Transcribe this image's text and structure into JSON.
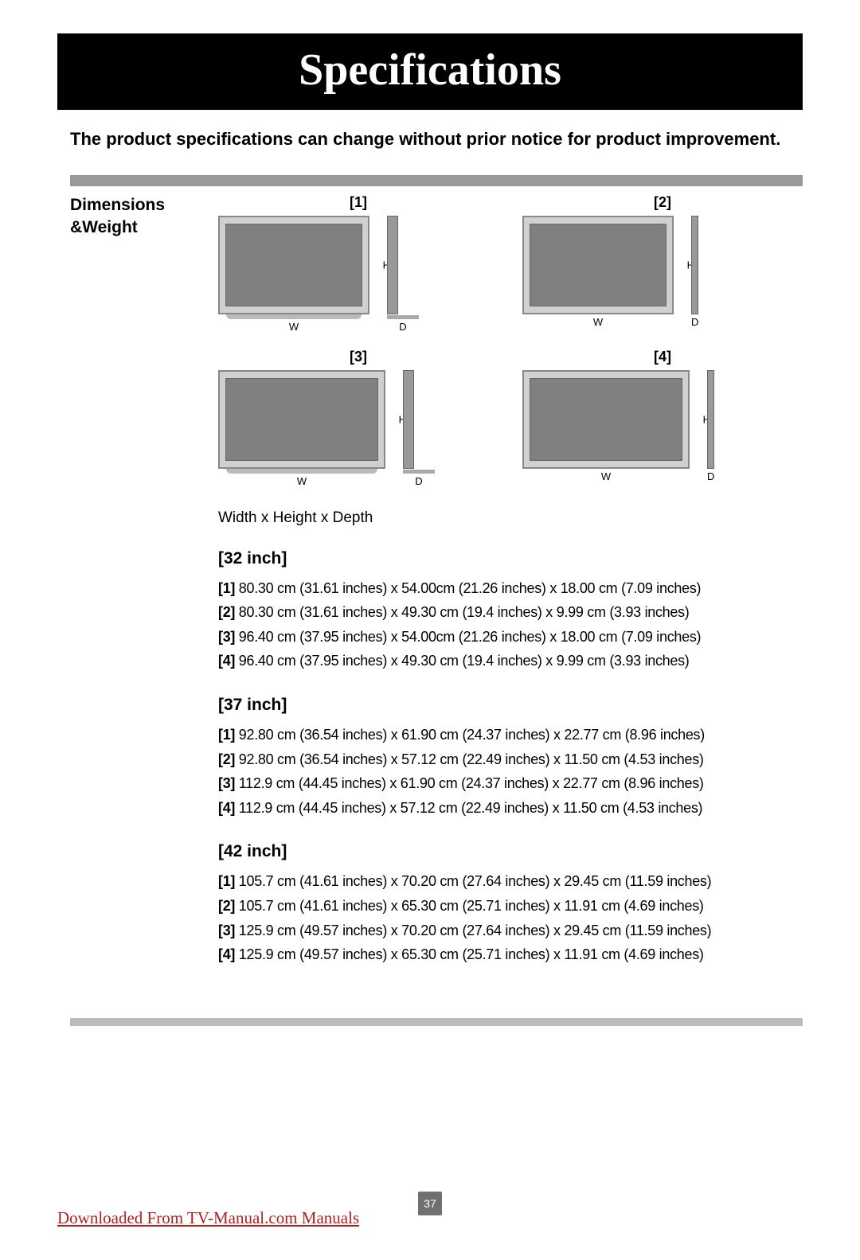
{
  "title": "Specifications",
  "notice": "The product specifications can change without prior notice for product improvement.",
  "sidebar_label_line1": "Dimensions",
  "sidebar_label_line2": " &Weight",
  "diagram_labels": {
    "n1": "[1]",
    "n2": "[2]",
    "n3": "[3]",
    "n4": "[4]"
  },
  "dim_letters": {
    "h": "H",
    "w": "W",
    "d": "D"
  },
  "whd_label": "Width x Height x Depth",
  "sizes": [
    {
      "title": "[32 inch]",
      "lines": [
        {
          "tag": "[1]",
          "text": " 80.30 cm (31.61 inches) x 54.00cm (21.26 inches) x 18.00 cm (7.09 inches)"
        },
        {
          "tag": "[2]",
          "text": " 80.30 cm (31.61 inches) x 49.30 cm (19.4 inches) x 9.99 cm (3.93 inches)"
        },
        {
          "tag": "[3]",
          "text": " 96.40 cm (37.95 inches) x 54.00cm (21.26 inches) x 18.00 cm (7.09 inches)"
        },
        {
          "tag": "[4]",
          "text": " 96.40 cm (37.95 inches) x 49.30 cm (19.4 inches) x 9.99 cm (3.93 inches)"
        }
      ]
    },
    {
      "title": "[37 inch]",
      "lines": [
        {
          "tag": "[1]",
          "text": " 92.80 cm (36.54 inches) x 61.90 cm (24.37 inches) x 22.77 cm (8.96 inches)"
        },
        {
          "tag": "[2]",
          "text": " 92.80 cm (36.54 inches) x 57.12 cm (22.49 inches) x 11.50 cm (4.53 inches)"
        },
        {
          "tag": "[3]",
          "text": " 112.9 cm (44.45 inches) x 61.90 cm (24.37 inches) x 22.77 cm (8.96 inches)"
        },
        {
          "tag": "[4]",
          "text": " 112.9 cm (44.45 inches) x 57.12 cm (22.49 inches) x 11.50 cm (4.53 inches)"
        }
      ]
    },
    {
      "title": "[42 inch]",
      "lines": [
        {
          "tag": "[1]",
          "text": " 105.7 cm (41.61 inches) x 70.20 cm (27.64 inches) x 29.45 cm (11.59 inches)"
        },
        {
          "tag": "[2]",
          "text": " 105.7 cm (41.61 inches) x 65.30 cm (25.71 inches) x 11.91 cm (4.69 inches)"
        },
        {
          "tag": "[3]",
          "text": " 125.9 cm (49.57 inches) x 70.20 cm (27.64 inches) x 29.45 cm (11.59 inches)"
        },
        {
          "tag": "[4]",
          "text": " 125.9 cm (49.57 inches) x 65.30 cm (25.71 inches) x 11.91 cm (4.69 inches)"
        }
      ]
    }
  ],
  "page_number": "37",
  "download_text": "Downloaded From TV-Manual.com Manuals",
  "colors": {
    "title_bg": "#000000",
    "title_fg": "#ffffff",
    "gray_bar": "#999999",
    "tv_body": "#d0d0d0",
    "tv_screen": "#808080",
    "page_badge": "#707070",
    "link": "#b02020"
  }
}
